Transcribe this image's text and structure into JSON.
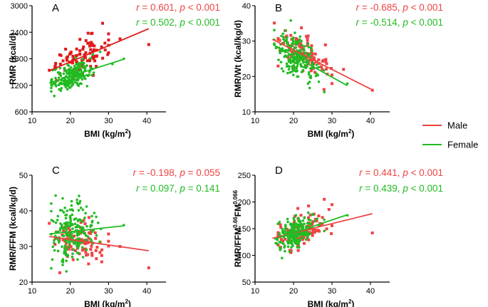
{
  "colors": {
    "male": "#ee4444",
    "male_panel_a": "#e01a1a",
    "female": "#22bb22"
  },
  "legend": {
    "items": [
      {
        "label": "Male",
        "color": "#ee4444"
      },
      {
        "label": "Female",
        "color": "#22bb22"
      }
    ]
  },
  "chart_data": [
    {
      "id": "A",
      "type": "scatter",
      "letter": "A",
      "xlabel": "BMI (kg/m",
      "xlabel_sup": "2",
      "xlabel_end": ")",
      "ylabel": "RMR (kcal/d)",
      "xlim": [
        10,
        45
      ],
      "ylim": [
        600,
        3000
      ],
      "xticks": [
        10,
        20,
        30,
        40
      ],
      "yticks": [
        600,
        1200,
        1800,
        2400,
        3000
      ],
      "stats": {
        "male": {
          "r": "0.601",
          "p": "< 0.001"
        },
        "female": {
          "r": "0.502",
          "p": "< 0.001"
        }
      },
      "series": [
        {
          "name": "Male",
          "fit": {
            "x": [
              14.5,
              40.5
            ],
            "y": [
              1530,
              2480
            ]
          },
          "cloud": {
            "x_center": 22.5,
            "x_sd": 3.5,
            "x_range": [
              16,
              30
            ],
            "y_sd": 210,
            "n": 95
          },
          "extra_points": [
            [
              40.5,
              2120
            ],
            [
              33,
              2250
            ],
            [
              14.5,
              1540
            ]
          ]
        },
        {
          "name": "Female",
          "fit": {
            "x": [
              14.5,
              34
            ],
            "y": [
              1250,
              1790
            ]
          },
          "cloud": {
            "x_center": 20.5,
            "x_sd": 2.7,
            "x_range": [
              15,
              28
            ],
            "y_sd": 140,
            "n": 210
          },
          "extra_points": [
            [
              34,
              1800
            ],
            [
              31,
              1680
            ]
          ]
        }
      ]
    },
    {
      "id": "B",
      "type": "scatter",
      "letter": "B",
      "xlabel": "BMI (kg/m",
      "xlabel_sup": "2",
      "xlabel_end": ")",
      "ylabel": "RMR/Wt (kcal/kg/d)",
      "xlim": [
        10,
        45
      ],
      "ylim": [
        10,
        40
      ],
      "xticks": [
        10,
        20,
        30,
        40
      ],
      "yticks": [
        10,
        20,
        30,
        40
      ],
      "stats": {
        "male": {
          "r": "-0.685",
          "p": "< 0.001"
        },
        "female": {
          "r": "-0.514",
          "p": "< 0.001"
        }
      },
      "series": [
        {
          "name": "Male",
          "fit": {
            "x": [
              14.5,
              40.5
            ],
            "y": [
              30.5,
              16.2
            ]
          },
          "cloud": {
            "x_center": 22.5,
            "x_sd": 3.5,
            "x_range": [
              16,
              30
            ],
            "y_sd": 2.5,
            "n": 95
          },
          "extra_points": [
            [
              40.5,
              16.1
            ],
            [
              15,
              35.1
            ],
            [
              33,
              22
            ]
          ]
        },
        {
          "name": "Female",
          "fit": {
            "x": [
              15,
              34
            ],
            "y": [
              28.8,
              17.4
            ]
          },
          "cloud": {
            "x_center": 20.5,
            "x_sd": 2.7,
            "x_range": [
              15,
              28
            ],
            "y_sd": 2.6,
            "n": 210
          },
          "extra_points": [
            [
              34,
              18
            ],
            [
              18,
              33
            ]
          ]
        }
      ]
    },
    {
      "id": "C",
      "type": "scatter",
      "letter": "C",
      "xlabel": "BMI (kg/m",
      "xlabel_sup": "2",
      "xlabel_end": ")",
      "ylabel": "RMR/FFM (kcal/kg/d)",
      "xlim": [
        10,
        45
      ],
      "ylim": [
        20,
        50
      ],
      "xticks": [
        10,
        20,
        30,
        40
      ],
      "yticks": [
        20,
        30,
        40,
        50
      ],
      "stats": {
        "male": {
          "r": "-0.198",
          "p": "= 0.055"
        },
        "female": {
          "r": "0.097",
          "p": "= 0.141"
        }
      },
      "series": [
        {
          "name": "Male",
          "fit": {
            "x": [
              14.5,
              40.5
            ],
            "y": [
              32.8,
              28.8
            ]
          },
          "cloud": {
            "x_center": 22.5,
            "x_sd": 3.5,
            "x_range": [
              16,
              30
            ],
            "y_sd": 2.8,
            "n": 95
          },
          "extra_points": [
            [
              40.5,
              24
            ],
            [
              14.5,
              36.5
            ],
            [
              33,
              30
            ]
          ]
        },
        {
          "name": "Female",
          "fit": {
            "x": [
              14.5,
              34
            ],
            "y": [
              33.5,
              35.8
            ]
          },
          "cloud": {
            "x_center": 20.5,
            "x_sd": 2.7,
            "x_range": [
              15,
              28
            ],
            "y_sd": 3.8,
            "n": 210
          },
          "extra_points": [
            [
              34,
              36
            ],
            [
              19,
              23
            ],
            [
              18,
              43.5
            ]
          ]
        }
      ]
    },
    {
      "id": "D",
      "type": "scatter",
      "letter": "D",
      "xlabel": "BMI (kg/m",
      "xlabel_sup": "2",
      "xlabel_end": ")",
      "ylabel": "RMR/FFM",
      "ylabel_sup1": "0.66",
      "ylabel_mid": "FM",
      "ylabel_sup2": "0.066",
      "xlim": [
        10,
        45
      ],
      "ylim": [
        50,
        250
      ],
      "xticks": [
        10,
        20,
        30,
        40
      ],
      "yticks": [
        50,
        100,
        150,
        200,
        250
      ],
      "stats": {
        "male": {
          "r": "0.441",
          "p": "< 0.001"
        },
        "female": {
          "r": "0.439",
          "p": "< 0.001"
        }
      },
      "series": [
        {
          "name": "Male",
          "fit": {
            "x": [
              14.5,
              40.5
            ],
            "y": [
              132,
              178
            ]
          },
          "cloud": {
            "x_center": 22.5,
            "x_sd": 3.5,
            "x_range": [
              16,
              30
            ],
            "y_sd": 15,
            "n": 95
          },
          "extra_points": [
            [
              40.5,
              142
            ],
            [
              28,
              205
            ],
            [
              30,
              195
            ]
          ]
        },
        {
          "name": "Female",
          "fit": {
            "x": [
              15,
              34
            ],
            "y": [
              130,
              176
            ]
          },
          "cloud": {
            "x_center": 20.5,
            "x_sd": 2.7,
            "x_range": [
              15,
              28
            ],
            "y_sd": 14,
            "n": 210
          },
          "extra_points": [
            [
              34,
              175
            ],
            [
              17,
              95
            ]
          ]
        }
      ]
    }
  ]
}
